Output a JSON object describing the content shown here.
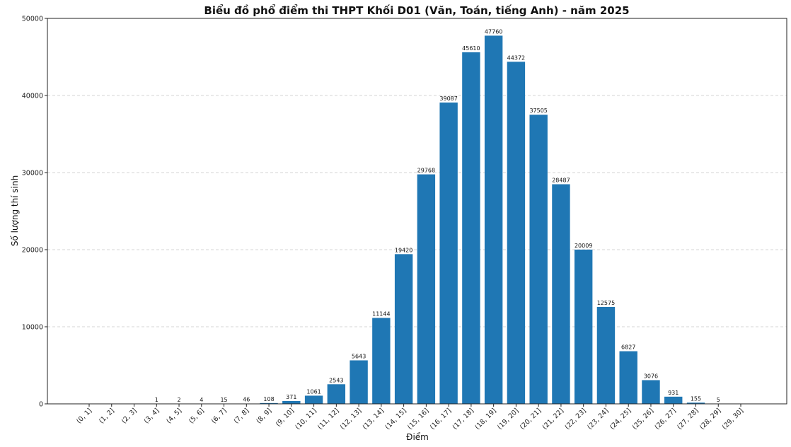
{
  "chart_data": {
    "type": "bar",
    "title": "Biểu đồ phổ điểm thi THPT Khối D01 (Văn, Toán, tiếng Anh) - năm 2025",
    "xlabel": "Điểm",
    "ylabel": "Số lượng thí sinh",
    "categories": [
      "(0, 1]",
      "(1, 2]",
      "(2, 3]",
      "(3, 4]",
      "(4, 5]",
      "(5, 6]",
      "(6, 7]",
      "(7, 8]",
      "(8, 9]",
      "(9, 10]",
      "(10, 11]",
      "(11, 12]",
      "(12, 13]",
      "(13, 14]",
      "(14, 15]",
      "(15, 16]",
      "(16, 17]",
      "(17, 18]",
      "(18, 19]",
      "(19, 20]",
      "(20, 21]",
      "(21, 22]",
      "(22, 23]",
      "(23, 24]",
      "(24, 25]",
      "(25, 26]",
      "(26, 27]",
      "(27, 28]",
      "(28, 29]",
      "(29, 30]"
    ],
    "values": [
      0,
      0,
      0,
      1,
      2,
      4,
      15,
      46,
      108,
      371,
      1061,
      2543,
      5643,
      11144,
      19420,
      29768,
      39087,
      45610,
      47760,
      44372,
      37505,
      28487,
      20009,
      12575,
      6827,
      3076,
      931,
      155,
      5,
      0
    ],
    "data_labels": [
      "",
      "",
      "",
      "1",
      "2",
      "4",
      "15",
      "46",
      "108",
      "371",
      "1061",
      "2543",
      "5643",
      "11144",
      "19420",
      "29768",
      "39087",
      "45610",
      "47760",
      "44372",
      "37505",
      "28487",
      "20009",
      "12575",
      "6827",
      "3076",
      "931",
      "155",
      "5",
      ""
    ],
    "yticks": [
      0,
      10000,
      20000,
      30000,
      40000,
      50000
    ],
    "ylim": [
      0,
      50000
    ],
    "grid": "horizontal-dashed",
    "bar_color": "#1f77b4"
  }
}
